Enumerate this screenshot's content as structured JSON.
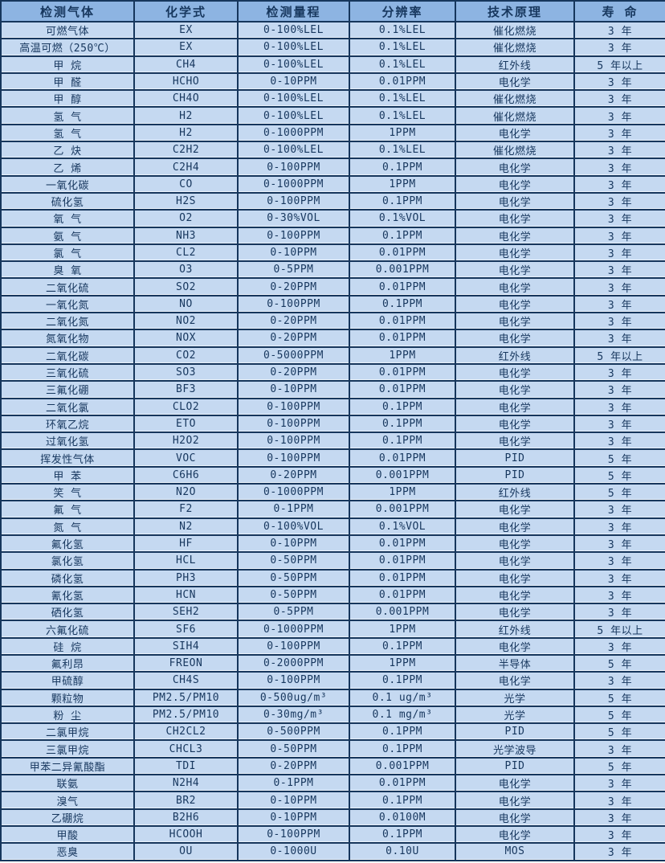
{
  "colors": {
    "header_bg": "#8db4e2",
    "row_bg": "#c5d9f1",
    "border": "#16365c",
    "text": "#17375e"
  },
  "table": {
    "headers": [
      "检测气体",
      "化学式",
      "检测量程",
      "分辨率",
      "技术原理",
      "寿 命"
    ],
    "rows": [
      [
        "可燃气体",
        "EX",
        "0-100%LEL",
        "0.1%LEL",
        "催化燃烧",
        "3 年"
      ],
      [
        "高温可燃（250℃）",
        "EX",
        "0-100%LEL",
        "0.1%LEL",
        "催化燃烧",
        "3 年"
      ],
      [
        "甲  烷",
        "CH4",
        "0-100%LEL",
        "0.1%LEL",
        "红外线",
        "5 年以上"
      ],
      [
        "甲  醛",
        "HCHO",
        "0-10PPM",
        "0.01PPM",
        "电化学",
        "3 年"
      ],
      [
        "甲  醇",
        "CH4O",
        "0-100%LEL",
        "0.1%LEL",
        "催化燃烧",
        "3 年"
      ],
      [
        "氢  气",
        "H2",
        "0-100%LEL",
        "0.1%LEL",
        "催化燃烧",
        "3 年"
      ],
      [
        "氢  气",
        "H2",
        "0-1000PPM",
        "1PPM",
        "电化学",
        "3 年"
      ],
      [
        "乙  炔",
        "C2H2",
        "0-100%LEL",
        "0.1%LEL",
        "催化燃烧",
        "3 年"
      ],
      [
        "乙  烯",
        "C2H4",
        "0-100PPM",
        "0.1PPM",
        "电化学",
        "3 年"
      ],
      [
        "一氧化碳",
        "CO",
        "0-1000PPM",
        "1PPM",
        "电化学",
        "3 年"
      ],
      [
        "硫化氢",
        "H2S",
        "0-100PPM",
        "0.1PPM",
        "电化学",
        "3 年"
      ],
      [
        "氧  气",
        "O2",
        "0-30%VOL",
        "0.1%VOL",
        "电化学",
        "3 年"
      ],
      [
        "氨  气",
        "NH3",
        "0-100PPM",
        "0.1PPM",
        "电化学",
        "3 年"
      ],
      [
        "氯  气",
        "CL2",
        "0-10PPM",
        "0.01PPM",
        "电化学",
        "3 年"
      ],
      [
        "臭  氧",
        "O3",
        "0-5PPM",
        "0.001PPM",
        "电化学",
        "3 年"
      ],
      [
        "二氧化硫",
        "SO2",
        "0-20PPM",
        "0.01PPM",
        "电化学",
        "3 年"
      ],
      [
        "一氧化氮",
        "NO",
        "0-100PPM",
        "0.1PPM",
        "电化学",
        "3 年"
      ],
      [
        "二氧化氮",
        "NO2",
        "0-20PPM",
        "0.01PPM",
        "电化学",
        "3 年"
      ],
      [
        "氮氧化物",
        "NOX",
        "0-20PPM",
        "0.01PPM",
        "电化学",
        "3 年"
      ],
      [
        "二氧化碳",
        "CO2",
        "0-5000PPM",
        "1PPM",
        "红外线",
        "5 年以上"
      ],
      [
        "三氧化硫",
        "SO3",
        "0-20PPM",
        "0.01PPM",
        "电化学",
        "3 年"
      ],
      [
        "三氟化硼",
        "BF3",
        "0-10PPM",
        "0.01PPM",
        "电化学",
        "3 年"
      ],
      [
        "二氧化氯",
        "CLO2",
        "0-100PPM",
        "0.1PPM",
        "电化学",
        "3 年"
      ],
      [
        "环氧乙烷",
        "ETO",
        "0-100PPM",
        "0.1PPM",
        "电化学",
        "3 年"
      ],
      [
        "过氧化氢",
        "H2O2",
        "0-100PPM",
        "0.1PPM",
        "电化学",
        "3 年"
      ],
      [
        "挥发性气体",
        "VOC",
        "0-100PPM",
        "0.01PPM",
        "PID",
        "5 年"
      ],
      [
        "甲  苯",
        "C6H6",
        "0-20PPM",
        "0.001PPM",
        "PID",
        "5 年"
      ],
      [
        "笑  气",
        "N2O",
        "0-1000PPM",
        "1PPM",
        "红外线",
        "5 年"
      ],
      [
        "氟  气",
        "F2",
        "0-1PPM",
        "0.001PPM",
        "电化学",
        "3 年"
      ],
      [
        "氮  气",
        "N2",
        "0-100%VOL",
        "0.1%VOL",
        "电化学",
        "3 年"
      ],
      [
        "氟化氢",
        "HF",
        "0-10PPM",
        "0.01PPM",
        "电化学",
        "3 年"
      ],
      [
        "氯化氢",
        "HCL",
        "0-50PPM",
        "0.01PPM",
        "电化学",
        "3 年"
      ],
      [
        "磷化氢",
        "PH3",
        "0-50PPM",
        "0.01PPM",
        "电化学",
        "3 年"
      ],
      [
        "氰化氢",
        "HCN",
        "0-50PPM",
        "0.01PPM",
        "电化学",
        "3 年"
      ],
      [
        "硒化氢",
        "SEH2",
        "0-5PPM",
        "0.001PPM",
        "电化学",
        "3 年"
      ],
      [
        "六氟化硫",
        "SF6",
        "0-1000PPM",
        "1PPM",
        "红外线",
        "5 年以上"
      ],
      [
        "硅  烷",
        "SIH4",
        "0-100PPM",
        "0.1PPM",
        "电化学",
        "3 年"
      ],
      [
        "氟利昂",
        "FREON",
        "0-2000PPM",
        "1PPM",
        "半导体",
        "5 年"
      ],
      [
        "甲硫醇",
        "CH4S",
        "0-100PPM",
        "0.1PPM",
        "电化学",
        "3 年"
      ],
      [
        "颗粒物",
        "PM2.5/PM10",
        "0-500ug/m³",
        "0.1 ug/m³",
        "光学",
        "5 年"
      ],
      [
        "粉  尘",
        "PM2.5/PM10",
        "0-30mg/m³",
        "0.1 mg/m³",
        "光学",
        "5 年"
      ],
      [
        "二氯甲烷",
        "CH2CL2",
        "0-500PPM",
        "0.1PPM",
        "PID",
        "5 年"
      ],
      [
        "三氯甲烷",
        "CHCL3",
        "0-50PPM",
        "0.1PPM",
        "光学波导",
        "3 年"
      ],
      [
        "甲苯二异氰酸酯",
        "TDI",
        "0-20PPM",
        "0.001PPM",
        "PID",
        "5 年"
      ],
      [
        "联氨",
        "N2H4",
        "0-1PPM",
        "0.01PPM",
        "电化学",
        "3 年"
      ],
      [
        "溴气",
        "BR2",
        "0-10PPM",
        "0.1PPM",
        "电化学",
        "3 年"
      ],
      [
        "乙硼烷",
        "B2H6",
        "0-10PPM",
        "0.0100M",
        "电化学",
        "3 年"
      ],
      [
        "甲酸",
        "HCOOH",
        "0-100PPM",
        "0.1PPM",
        "电化学",
        "3 年"
      ],
      [
        "恶臭",
        "OU",
        "0-1000U",
        "0.10U",
        "MOS",
        "3 年"
      ]
    ]
  }
}
